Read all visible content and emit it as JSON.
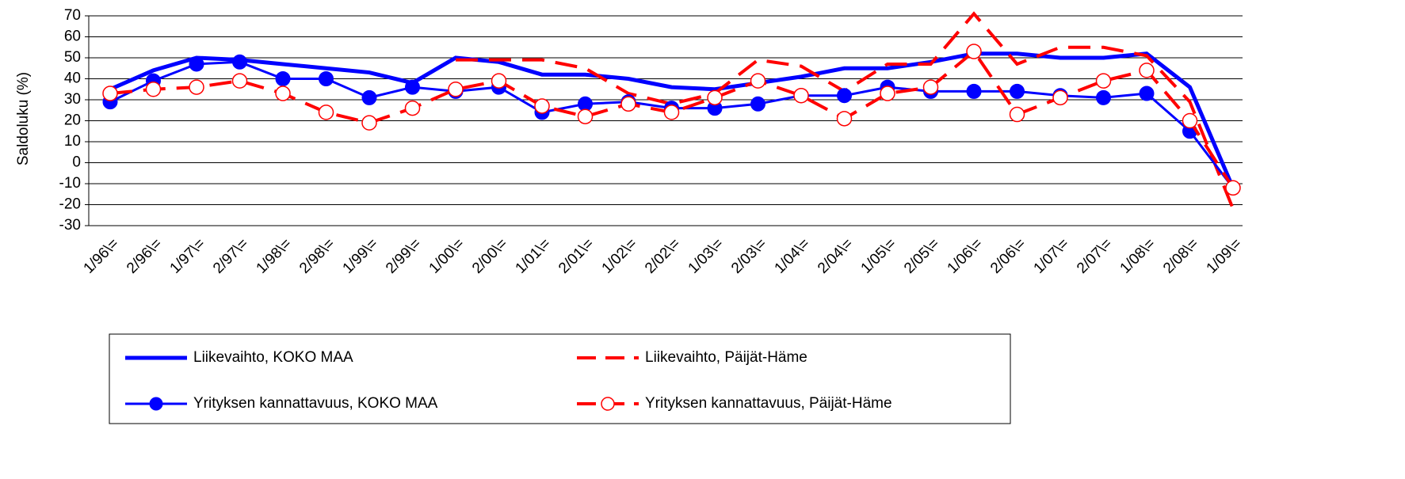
{
  "chart_data": {
    "type": "line",
    "y_label": "Saldoluku (%)",
    "categories": [
      "1/96\\=",
      "2/96\\=",
      "1/97\\=",
      "2/97\\=",
      "1/98\\=",
      "2/98\\=",
      "1/99\\=",
      "2/99\\=",
      "1/00\\=",
      "2/00\\=",
      "1/01\\=",
      "2/01\\=",
      "1/02\\=",
      "2/02\\=",
      "1/03\\=",
      "2/03\\=",
      "1/04\\=",
      "2/04\\=",
      "1/05\\=",
      "2/05\\=",
      "1/06\\=",
      "2/06\\=",
      "1/07\\=",
      "2/07\\=",
      "1/08\\=",
      "2/08\\=",
      "1/09\\="
    ],
    "series": [
      {
        "name": "Liikevaihto, KOKO MAA",
        "color": "#0000ff",
        "dashed": false,
        "marker": "none",
        "values": [
          35,
          44,
          50,
          49,
          47,
          45,
          43,
          38,
          50,
          48,
          42,
          42,
          40,
          36,
          35,
          38,
          41,
          45,
          45,
          48,
          52,
          52,
          50,
          50,
          52,
          36,
          -12
        ]
      },
      {
        "name": "Liikevaihto, Päijät-Häme",
        "color": "#ff0000",
        "dashed": true,
        "marker": "none",
        "values": [
          null,
          null,
          null,
          null,
          null,
          null,
          null,
          null,
          49,
          49,
          49,
          45,
          33,
          28,
          33,
          49,
          46,
          34,
          47,
          47,
          71,
          47,
          55,
          55,
          51,
          29,
          -22
        ]
      },
      {
        "name": "Yrityksen kannattavuus, KOKO MAA",
        "color": "#0000ff",
        "dashed": false,
        "marker": "circle",
        "values": [
          29,
          39,
          47,
          48,
          40,
          40,
          31,
          36,
          34,
          36,
          24,
          28,
          29,
          26,
          26,
          28,
          32,
          32,
          36,
          34,
          34,
          34,
          32,
          31,
          33,
          15,
          -12
        ]
      },
      {
        "name": "Yrityksen kannattavuus, Päijät-Häme",
        "color": "#ff0000",
        "dashed": true,
        "marker": "open-circle",
        "values": [
          33,
          35,
          36,
          39,
          33,
          24,
          19,
          26,
          35,
          39,
          27,
          22,
          28,
          24,
          31,
          39,
          32,
          21,
          33,
          36,
          53,
          23,
          31,
          39,
          44,
          20,
          -12
        ]
      }
    ],
    "ylim": [
      -30,
      70
    ],
    "yticks": [
      -30,
      -20,
      -10,
      0,
      10,
      20,
      30,
      40,
      50,
      60,
      70
    ],
    "grid": true
  }
}
